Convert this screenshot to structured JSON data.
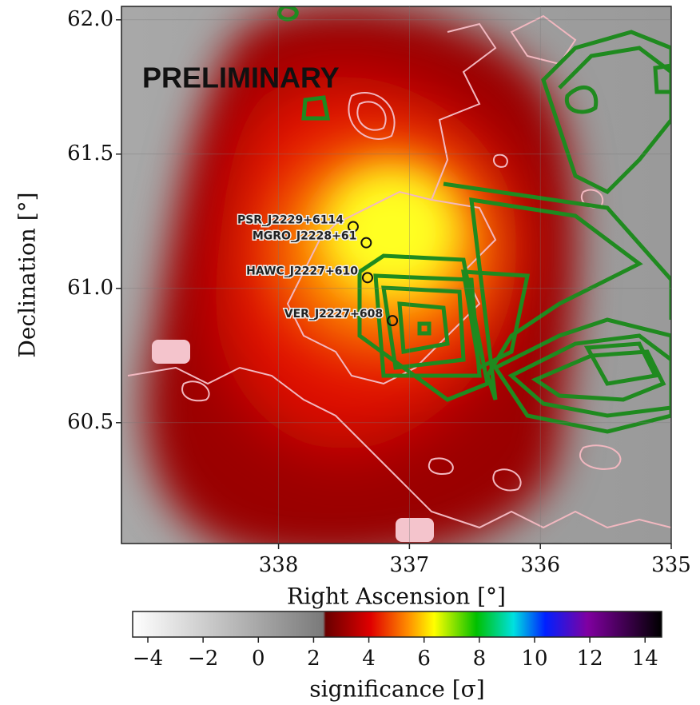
{
  "chart_data": {
    "type": "heatmap",
    "xlabel": "Right Ascension [°]",
    "ylabel": "Declination [°]",
    "annotation": "PRELIMINARY",
    "xlim": [
      339.2,
      335
    ],
    "xticks": [
      338,
      337,
      336,
      335
    ],
    "ylim": [
      60.05,
      62.05
    ],
    "yticks": [
      {
        "value": 60.5,
        "label": "60.5"
      },
      {
        "value": 61,
        "label": "61.0"
      },
      {
        "value": 61.5,
        "label": "61.5"
      },
      {
        "value": 62,
        "label": "62.0"
      }
    ],
    "colorbar": {
      "label": "significance [σ]",
      "lim": [
        -4.55,
        14.6
      ],
      "ticks": [
        {
          "value": -4,
          "label": "−4"
        },
        {
          "value": -2,
          "label": "−2"
        },
        0,
        2,
        4,
        6,
        8,
        10,
        12,
        14
      ]
    },
    "sources": [
      {
        "name": "PSR_J2229+6114",
        "x": 337.43,
        "y": 61.23
      },
      {
        "name": "MGRO_J2228+61",
        "x": 337.33,
        "y": 61.17
      },
      {
        "name": "HAWC_J2227+610",
        "x": 337.32,
        "y": 61.04
      },
      {
        "name": "VER_J2227+608",
        "x": 337.13,
        "y": 60.88
      }
    ]
  }
}
